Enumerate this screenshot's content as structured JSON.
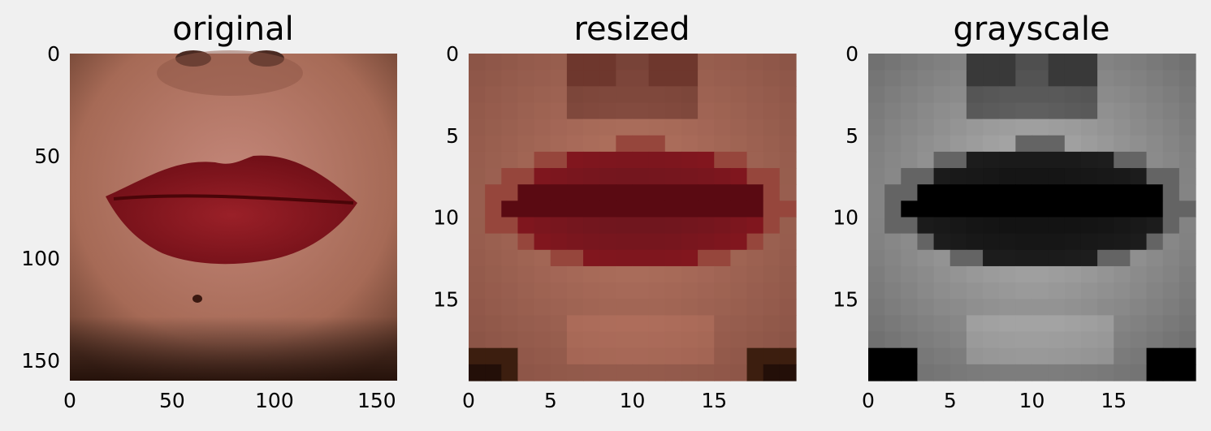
{
  "figure": {
    "background": "#f0f0f0",
    "panels": [
      {
        "title": "original",
        "grid_size": 160,
        "xticks": [
          "0",
          "50",
          "100",
          "150"
        ],
        "yticks": [
          "0",
          "50",
          "100",
          "150"
        ],
        "tick_values": [
          0,
          50,
          100,
          150
        ]
      },
      {
        "title": "resized",
        "grid_size": 20,
        "xticks": [
          "0",
          "5",
          "10",
          "15"
        ],
        "yticks": [
          "0",
          "5",
          "10",
          "15"
        ],
        "tick_values": [
          0,
          5,
          10,
          15
        ]
      },
      {
        "title": "grayscale",
        "grid_size": 20,
        "xticks": [
          "0",
          "5",
          "10",
          "15"
        ],
        "yticks": [
          "0",
          "5",
          "10",
          "15"
        ],
        "tick_values": [
          0,
          5,
          10,
          15
        ]
      }
    ]
  },
  "colors": {
    "skin": "#b87766",
    "skin_dark": "#8a5a45",
    "lip": "#8c1a22",
    "lip_dark": "#6a0c14",
    "shadow": "#2a150c",
    "nostril": "#4a2a22"
  }
}
